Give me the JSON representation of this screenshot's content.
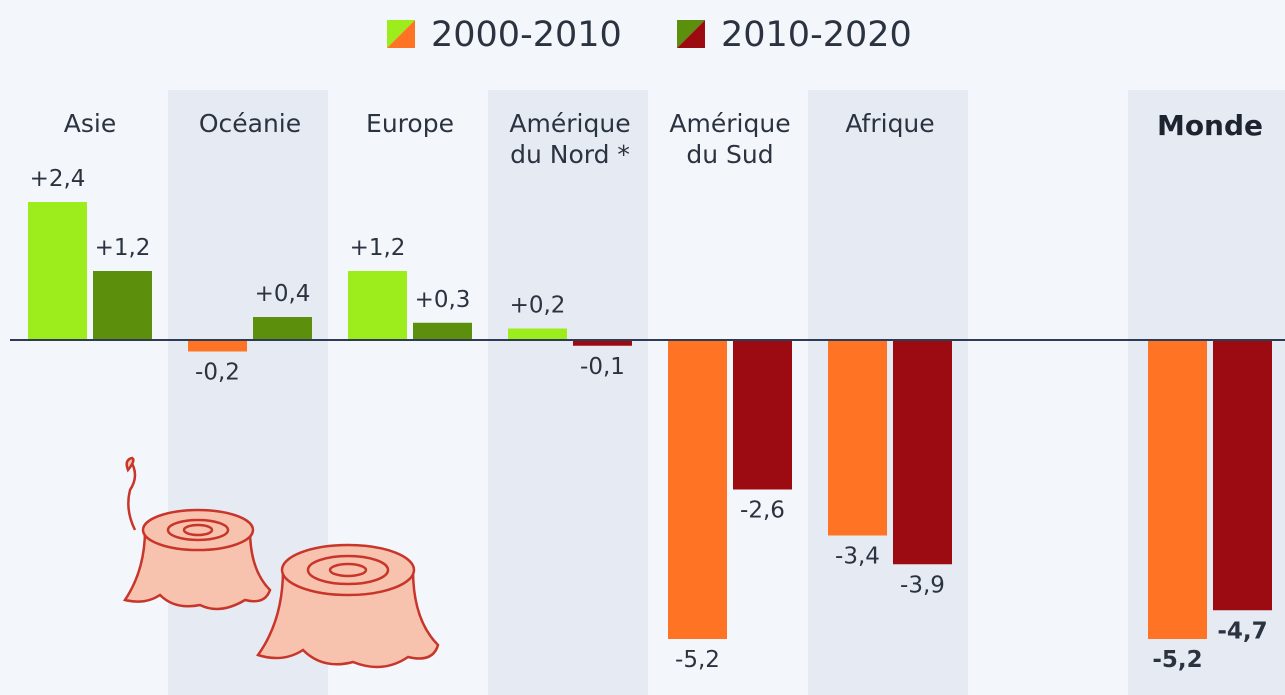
{
  "chart_data": {
    "type": "bar",
    "categories": [
      "Asie",
      "Océanie",
      "Europe",
      "Amérique du Nord *",
      "Amérique du Sud",
      "Afrique",
      "Monde"
    ],
    "series": [
      {
        "name": "2000-2010",
        "color": "#9ded1c",
        "negative_color": "#ff7424",
        "values": [
          2.4,
          -0.2,
          1.2,
          0.2,
          -5.2,
          -3.4,
          -5.2
        ],
        "value_labels": [
          "+2,4",
          "-0,2",
          "+1,2",
          "+0,2",
          "-5,2",
          "-3,4",
          "-5,2"
        ]
      },
      {
        "name": "2010-2020",
        "color": "#5b8f0c",
        "negative_color": "#9c0a12",
        "values": [
          1.2,
          0.4,
          0.3,
          -0.1,
          -2.6,
          -3.9,
          -4.7
        ],
        "value_labels": [
          "+1,2",
          "+0,4",
          "+0,3",
          "-0,1",
          "-2,6",
          "-3,9",
          "-4,7"
        ]
      }
    ],
    "ylim": [
      -6,
      6
    ]
  }
}
